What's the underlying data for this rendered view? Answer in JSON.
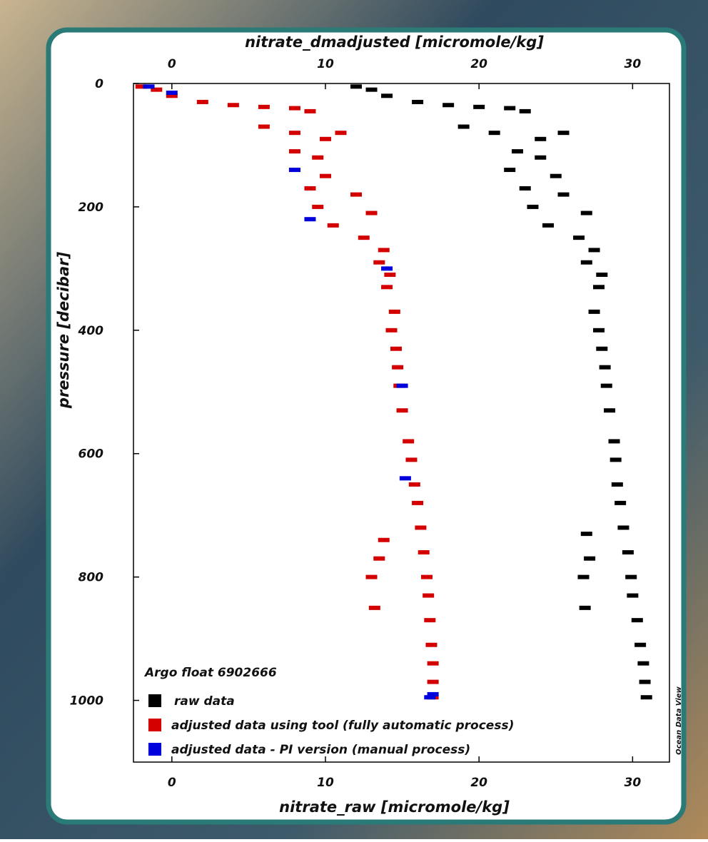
{
  "chart_data": {
    "type": "scatter",
    "xlabel": "nitrate_raw [micromole/kg]",
    "x2label": "nitrate_dmadjusted [micromole/kg]",
    "ylabel": "pressure [decibar]",
    "annotation": "Argo float 6902666",
    "credit": "Ocean Data View",
    "xlim": [
      -2.5,
      32.4
    ],
    "xticks": [
      0,
      10,
      20,
      30
    ],
    "x2lim": [
      -2.5,
      32.4
    ],
    "x2ticks": [
      0,
      10,
      20,
      30
    ],
    "ylim": [
      0,
      1100
    ],
    "yticks": [
      0,
      200,
      400,
      600,
      800,
      1000
    ],
    "y_inverted": true,
    "legend": "lower left",
    "series": [
      {
        "name": "raw data",
        "color": "#000000",
        "x": [
          12,
          13,
          14,
          16,
          18,
          20,
          22,
          23,
          19,
          21,
          24,
          25.5,
          22.5,
          24,
          22,
          25,
          23,
          25.5,
          23.5,
          27,
          24.5,
          26.5,
          27.5,
          27,
          28,
          27.8,
          27.5,
          27.8,
          28,
          28.2,
          28.3,
          28.5,
          28.8,
          28.9,
          29,
          29.2,
          29.4,
          27,
          29.7,
          27.2,
          29.9,
          26.8,
          30,
          26.9,
          30.3,
          30.5,
          30.7,
          30.8,
          30.9
        ],
        "y": [
          5,
          10,
          20,
          30,
          35,
          38,
          40,
          45,
          70,
          80,
          90,
          80,
          110,
          120,
          140,
          150,
          170,
          180,
          200,
          210,
          230,
          250,
          270,
          290,
          310,
          330,
          370,
          400,
          430,
          460,
          490,
          530,
          580,
          610,
          650,
          680,
          720,
          730,
          760,
          770,
          800,
          800,
          830,
          850,
          870,
          910,
          940,
          970,
          995
        ]
      },
      {
        "name": "adjusted data using tool (fully automatic process)",
        "color": "#d40000",
        "x": [
          -2,
          -1,
          0,
          2,
          4,
          6,
          8,
          9,
          6,
          8,
          10,
          11,
          8,
          9.5,
          8,
          10,
          9,
          12,
          9.5,
          13,
          10.5,
          12.5,
          13.8,
          13.5,
          14.2,
          14,
          14.5,
          14.3,
          14.6,
          14.7,
          14.8,
          15,
          15.4,
          15.6,
          15.8,
          16,
          16.2,
          13.8,
          16.4,
          13.5,
          16.6,
          13,
          16.7,
          13.2,
          16.8,
          16.9,
          17,
          17,
          17
        ],
        "y": [
          5,
          10,
          20,
          30,
          35,
          38,
          40,
          45,
          70,
          80,
          90,
          80,
          110,
          120,
          140,
          150,
          170,
          180,
          200,
          210,
          230,
          250,
          270,
          290,
          310,
          330,
          370,
          400,
          430,
          460,
          490,
          530,
          580,
          610,
          650,
          680,
          720,
          740,
          760,
          770,
          800,
          800,
          830,
          850,
          870,
          910,
          940,
          970,
          995
        ]
      },
      {
        "name": "adjusted data - PI version (manual process)",
        "color": "#0000dd",
        "x": [
          -1.5,
          0,
          8,
          9,
          14,
          15,
          15.2,
          17,
          16.8
        ],
        "y": [
          5,
          15,
          140,
          220,
          300,
          490,
          640,
          990,
          995
        ]
      }
    ]
  }
}
